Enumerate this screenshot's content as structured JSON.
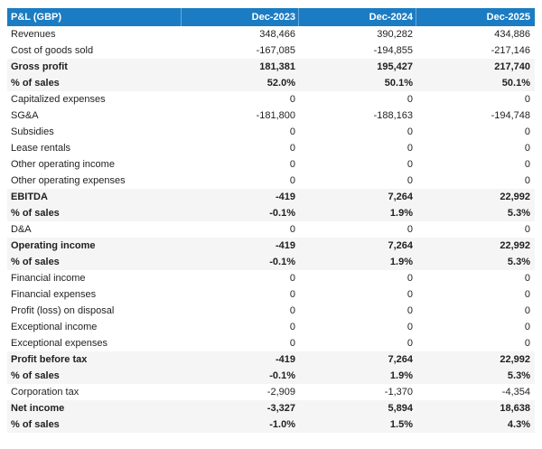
{
  "colors": {
    "header_bg": "#1b7cc3",
    "header_text": "#ffffff",
    "highlight_bg": "#f5f5f5",
    "body_text": "#1f1f1f"
  },
  "table": {
    "header": {
      "label": "P&L (GBP)",
      "columns": [
        "Dec-2023",
        "Dec-2024",
        "Dec-2025"
      ]
    },
    "rows": [
      {
        "label": "Revenues",
        "bold": false,
        "values": [
          "348,466",
          "390,282",
          "434,886"
        ]
      },
      {
        "label": "Cost of goods sold",
        "bold": false,
        "values": [
          "-167,085",
          "-194,855",
          "-217,146"
        ]
      },
      {
        "label": "Gross profit",
        "bold": true,
        "values": [
          "181,381",
          "195,427",
          "217,740"
        ]
      },
      {
        "label": "% of sales",
        "bold": true,
        "values": [
          "52.0%",
          "50.1%",
          "50.1%"
        ]
      },
      {
        "label": "Capitalized expenses",
        "bold": false,
        "values": [
          "0",
          "0",
          "0"
        ]
      },
      {
        "label": "SG&A",
        "bold": false,
        "values": [
          "-181,800",
          "-188,163",
          "-194,748"
        ]
      },
      {
        "label": "Subsidies",
        "bold": false,
        "values": [
          "0",
          "0",
          "0"
        ]
      },
      {
        "label": "Lease rentals",
        "bold": false,
        "values": [
          "0",
          "0",
          "0"
        ]
      },
      {
        "label": "Other operating income",
        "bold": false,
        "values": [
          "0",
          "0",
          "0"
        ]
      },
      {
        "label": "Other operating expenses",
        "bold": false,
        "values": [
          "0",
          "0",
          "0"
        ]
      },
      {
        "label": "EBITDA",
        "bold": true,
        "values": [
          "-419",
          "7,264",
          "22,992"
        ]
      },
      {
        "label": "% of sales",
        "bold": true,
        "values": [
          "-0.1%",
          "1.9%",
          "5.3%"
        ]
      },
      {
        "label": "D&A",
        "bold": false,
        "values": [
          "0",
          "0",
          "0"
        ]
      },
      {
        "label": "Operating income",
        "bold": true,
        "values": [
          "-419",
          "7,264",
          "22,992"
        ]
      },
      {
        "label": "% of sales",
        "bold": true,
        "values": [
          "-0.1%",
          "1.9%",
          "5.3%"
        ]
      },
      {
        "label": "Financial income",
        "bold": false,
        "values": [
          "0",
          "0",
          "0"
        ]
      },
      {
        "label": "Financial expenses",
        "bold": false,
        "values": [
          "0",
          "0",
          "0"
        ]
      },
      {
        "label": "Profit (loss) on disposal",
        "bold": false,
        "values": [
          "0",
          "0",
          "0"
        ]
      },
      {
        "label": "Exceptional income",
        "bold": false,
        "values": [
          "0",
          "0",
          "0"
        ]
      },
      {
        "label": "Exceptional expenses",
        "bold": false,
        "values": [
          "0",
          "0",
          "0"
        ]
      },
      {
        "label": "Profit before tax",
        "bold": true,
        "values": [
          "-419",
          "7,264",
          "22,992"
        ]
      },
      {
        "label": "% of sales",
        "bold": true,
        "values": [
          "-0.1%",
          "1.9%",
          "5.3%"
        ]
      },
      {
        "label": "Corporation tax",
        "bold": false,
        "values": [
          "-2,909",
          "-1,370",
          "-4,354"
        ]
      },
      {
        "label": "Net income",
        "bold": true,
        "values": [
          "-3,327",
          "5,894",
          "18,638"
        ]
      },
      {
        "label": "% of sales",
        "bold": true,
        "values": [
          "-1.0%",
          "1.5%",
          "4.3%"
        ]
      }
    ]
  }
}
